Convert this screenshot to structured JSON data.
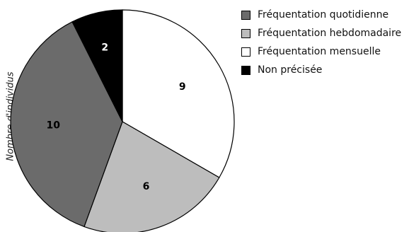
{
  "chart_data": {
    "type": "pie",
    "ylabel": "Nombre d'individus",
    "categories": [
      "Fréquentation quotidienne",
      "Fréquentation hebdomadaire",
      "Fréquentation mensuelle",
      "Non précisée"
    ],
    "values": [
      10,
      6,
      9,
      2
    ],
    "colors": [
      "#6b6b6b",
      "#bdbdbd",
      "#ffffff",
      "#000000"
    ],
    "label_colors": [
      "#000000",
      "#000000",
      "#000000",
      "#ffffff"
    ],
    "start": "top",
    "direction": "clockwise",
    "slice_order": [
      2,
      1,
      0,
      3
    ],
    "legend_position": "right",
    "grid": false
  }
}
